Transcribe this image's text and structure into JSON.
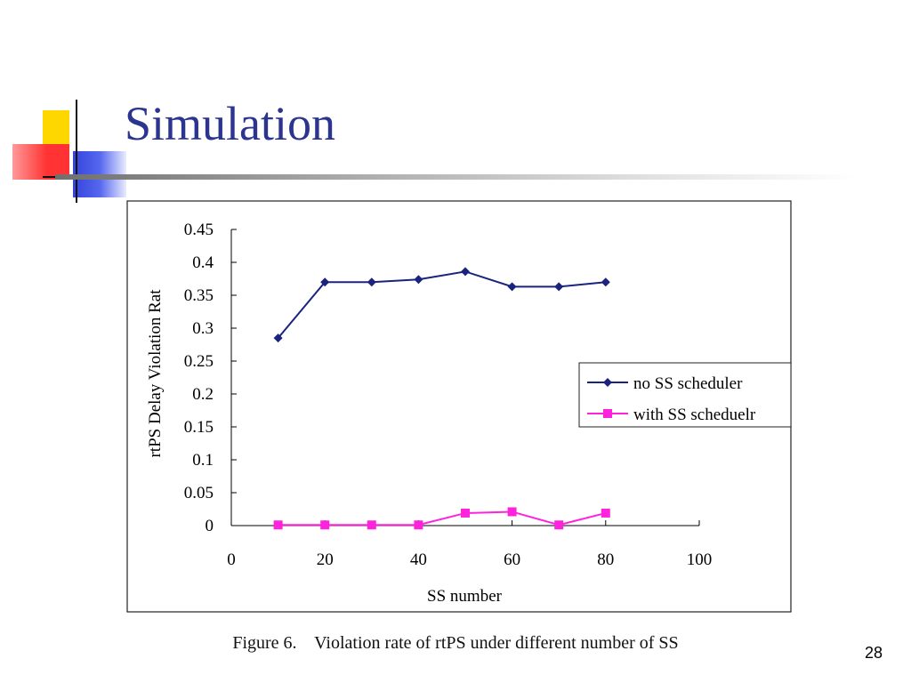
{
  "slide": {
    "title": "Simulation",
    "caption": "Figure 6.    Violation rate of rtPS under different number of SS",
    "page_number": "28"
  },
  "theme": {
    "title_color": "#2b3590",
    "logo_yellow": "#ffd700",
    "logo_red": "#ff3333",
    "logo_blue": "#3344dd"
  },
  "chart_data": {
    "type": "line",
    "title": "",
    "xlabel": "SS number",
    "ylabel": "rtPS Delay Violation Rat",
    "xlim": [
      0,
      100
    ],
    "ylim": [
      0,
      0.45
    ],
    "x_ticks": [
      0,
      20,
      40,
      60,
      80,
      100
    ],
    "y_ticks": [
      0,
      0.05,
      0.1,
      0.15,
      0.2,
      0.25,
      0.3,
      0.35,
      0.4,
      0.45
    ],
    "x_tick_labels": [
      "0",
      "20",
      "40",
      "60",
      "80",
      "100"
    ],
    "y_tick_labels": [
      "0",
      "0.05",
      "0.1",
      "0.15",
      "0.2",
      "0.25",
      "0.3",
      "0.35",
      "0.4",
      "0.45"
    ],
    "grid": false,
    "legend_position": "right-middle",
    "series": [
      {
        "name": "no SS scheduler",
        "color": "#1a237e",
        "marker": "diamond",
        "x": [
          10,
          20,
          30,
          40,
          50,
          60,
          70,
          80
        ],
        "y": [
          0.285,
          0.37,
          0.37,
          0.374,
          0.386,
          0.363,
          0.363,
          0.37
        ]
      },
      {
        "name": "with SS scheduelr",
        "color": "#ff22dd",
        "marker": "square",
        "x": [
          10,
          20,
          30,
          40,
          50,
          60,
          70,
          80
        ],
        "y": [
          0.001,
          0.001,
          0.001,
          0.001,
          0.019,
          0.021,
          0.001,
          0.019
        ]
      }
    ]
  }
}
